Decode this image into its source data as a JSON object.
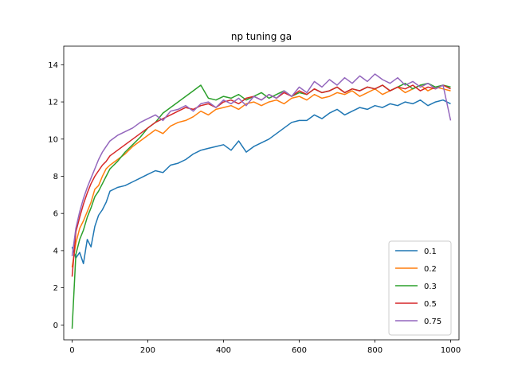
{
  "chart_data": {
    "type": "line",
    "title": "np tuning ga",
    "xlabel": "",
    "ylabel": "",
    "xlim": [
      -22,
      1022
    ],
    "ylim": [
      -0.8,
      15.0
    ],
    "xticks": [
      0,
      200,
      400,
      600,
      800,
      1000
    ],
    "yticks": [
      0,
      2,
      4,
      6,
      8,
      10,
      12,
      14
    ],
    "grid": false,
    "legend_position": "lower right",
    "series": [
      {
        "name": "0.1",
        "color": "#1f77b4",
        "x": [
          0,
          10,
          20,
          30,
          40,
          50,
          60,
          70,
          80,
          90,
          100,
          120,
          140,
          160,
          180,
          200,
          220,
          240,
          260,
          280,
          300,
          320,
          340,
          360,
          380,
          400,
          420,
          440,
          460,
          480,
          500,
          520,
          540,
          560,
          580,
          600,
          620,
          640,
          660,
          680,
          700,
          720,
          740,
          760,
          780,
          800,
          820,
          840,
          860,
          880,
          900,
          920,
          940,
          960,
          980,
          1000
        ],
        "y": [
          4.2,
          3.6,
          3.9,
          3.3,
          4.6,
          4.2,
          5.3,
          5.9,
          6.2,
          6.6,
          7.2,
          7.4,
          7.5,
          7.7,
          7.9,
          8.1,
          8.3,
          8.2,
          8.6,
          8.7,
          8.9,
          9.2,
          9.4,
          9.5,
          9.6,
          9.7,
          9.4,
          9.9,
          9.3,
          9.6,
          9.8,
          10.0,
          10.3,
          10.6,
          10.9,
          11.0,
          11.0,
          11.3,
          11.1,
          11.4,
          11.6,
          11.3,
          11.5,
          11.7,
          11.6,
          11.8,
          11.7,
          11.9,
          11.8,
          12.0,
          11.9,
          12.1,
          11.8,
          12.0,
          12.1,
          11.9
        ]
      },
      {
        "name": "0.2",
        "color": "#ff7f0e",
        "x": [
          0,
          10,
          20,
          30,
          40,
          50,
          60,
          70,
          80,
          90,
          100,
          120,
          140,
          160,
          180,
          200,
          220,
          240,
          260,
          280,
          300,
          320,
          340,
          360,
          380,
          400,
          420,
          440,
          460,
          480,
          500,
          520,
          540,
          560,
          580,
          600,
          620,
          640,
          660,
          680,
          700,
          720,
          740,
          760,
          780,
          800,
          820,
          840,
          860,
          880,
          900,
          920,
          940,
          960,
          980,
          1000
        ],
        "y": [
          3.1,
          4.4,
          5.2,
          5.6,
          6.1,
          6.6,
          7.3,
          7.5,
          8.0,
          8.4,
          8.6,
          8.9,
          9.2,
          9.6,
          9.9,
          10.2,
          10.5,
          10.3,
          10.7,
          10.9,
          11.0,
          11.2,
          11.5,
          11.3,
          11.6,
          11.7,
          11.8,
          11.6,
          11.9,
          12.0,
          11.8,
          12.0,
          12.1,
          11.9,
          12.2,
          12.3,
          12.1,
          12.4,
          12.2,
          12.3,
          12.5,
          12.4,
          12.6,
          12.3,
          12.5,
          12.7,
          12.4,
          12.6,
          12.8,
          12.5,
          12.7,
          12.9,
          12.6,
          12.8,
          12.7,
          12.6
        ]
      },
      {
        "name": "0.3",
        "color": "#2ca02c",
        "x": [
          0,
          10,
          20,
          30,
          40,
          50,
          60,
          70,
          80,
          90,
          100,
          120,
          140,
          160,
          180,
          200,
          220,
          240,
          260,
          280,
          300,
          320,
          340,
          360,
          380,
          400,
          420,
          440,
          460,
          480,
          500,
          520,
          540,
          560,
          580,
          600,
          620,
          640,
          660,
          680,
          700,
          720,
          740,
          760,
          780,
          800,
          820,
          840,
          860,
          880,
          900,
          920,
          940,
          960,
          980,
          1000
        ],
        "y": [
          -0.2,
          3.8,
          4.6,
          5.1,
          5.8,
          6.3,
          6.9,
          7.2,
          7.6,
          8.0,
          8.4,
          8.8,
          9.3,
          9.7,
          10.1,
          10.6,
          10.9,
          11.4,
          11.7,
          12.0,
          12.3,
          12.6,
          12.9,
          12.2,
          12.1,
          12.3,
          12.2,
          12.4,
          12.1,
          12.3,
          12.5,
          12.2,
          12.4,
          12.6,
          12.3,
          12.5,
          12.4,
          12.7,
          12.5,
          12.6,
          12.8,
          12.5,
          12.7,
          12.6,
          12.8,
          12.7,
          12.9,
          12.6,
          12.8,
          13.0,
          12.7,
          12.9,
          13.0,
          12.8,
          12.9,
          12.8
        ]
      },
      {
        "name": "0.5",
        "color": "#d62728",
        "x": [
          0,
          10,
          20,
          30,
          40,
          50,
          60,
          70,
          80,
          90,
          100,
          120,
          140,
          160,
          180,
          200,
          220,
          240,
          260,
          280,
          300,
          320,
          340,
          360,
          380,
          400,
          420,
          440,
          460,
          480,
          500,
          520,
          540,
          560,
          580,
          600,
          620,
          640,
          660,
          680,
          700,
          720,
          740,
          760,
          780,
          800,
          820,
          840,
          860,
          880,
          900,
          920,
          940,
          960,
          980,
          1000
        ],
        "y": [
          2.6,
          5.0,
          5.8,
          6.5,
          7.1,
          7.6,
          8.0,
          8.3,
          8.6,
          8.8,
          9.1,
          9.4,
          9.7,
          10.0,
          10.3,
          10.6,
          10.9,
          11.1,
          11.3,
          11.5,
          11.7,
          11.6,
          11.8,
          11.9,
          11.7,
          12.0,
          12.1,
          11.9,
          12.2,
          12.3,
          12.1,
          12.4,
          12.2,
          12.5,
          12.3,
          12.6,
          12.4,
          12.7,
          12.5,
          12.6,
          12.8,
          12.5,
          12.7,
          12.6,
          12.8,
          12.7,
          12.9,
          12.6,
          12.8,
          12.7,
          12.9,
          12.6,
          12.8,
          12.7,
          12.9,
          12.7
        ]
      },
      {
        "name": "0.75",
        "color": "#9467bd",
        "x": [
          0,
          10,
          20,
          30,
          40,
          50,
          60,
          70,
          80,
          90,
          100,
          120,
          140,
          160,
          180,
          200,
          220,
          240,
          260,
          280,
          300,
          320,
          340,
          360,
          380,
          400,
          420,
          440,
          460,
          480,
          500,
          520,
          540,
          560,
          580,
          600,
          620,
          640,
          660,
          680,
          700,
          720,
          740,
          760,
          780,
          800,
          820,
          840,
          860,
          880,
          900,
          920,
          940,
          960,
          980,
          1000
        ],
        "y": [
          3.7,
          5.2,
          6.1,
          6.8,
          7.4,
          7.9,
          8.4,
          8.9,
          9.3,
          9.6,
          9.9,
          10.2,
          10.4,
          10.6,
          10.9,
          11.1,
          11.3,
          11.0,
          11.5,
          11.6,
          11.8,
          11.5,
          11.9,
          12.0,
          11.7,
          12.1,
          11.9,
          12.2,
          11.8,
          12.3,
          12.1,
          12.4,
          12.2,
          12.6,
          12.3,
          12.8,
          12.5,
          13.1,
          12.8,
          13.2,
          12.9,
          13.3,
          13.0,
          13.4,
          13.1,
          13.5,
          13.2,
          13.0,
          13.3,
          12.9,
          13.1,
          12.8,
          13.0,
          12.7,
          12.9,
          11.0
        ]
      }
    ]
  }
}
